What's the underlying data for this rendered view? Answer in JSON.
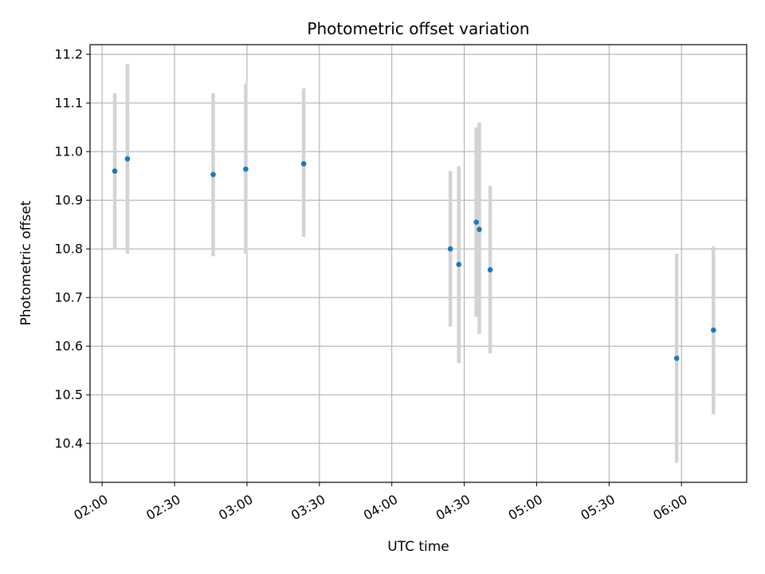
{
  "chart_data": {
    "type": "scatter",
    "title": "Photometric offset variation",
    "xlabel": "UTC time",
    "ylabel": "Photometric offset",
    "x_unit": "UTC time",
    "xlim": [
      "01:55",
      "06:27"
    ],
    "ylim": [
      10.32,
      11.22
    ],
    "grid": true,
    "x_ticks": [
      "02:00",
      "02:30",
      "03:00",
      "03:30",
      "04:00",
      "04:30",
      "05:00",
      "05:30",
      "06:00"
    ],
    "y_ticks": [
      "10.4",
      "10.5",
      "10.6",
      "10.7",
      "10.8",
      "10.9",
      "11.0",
      "11.1",
      "11.2"
    ],
    "marker_color": "#1f77b4",
    "errorbar_color": "#d3d3d3",
    "points": [
      {
        "time": "02:05:15",
        "value": 10.96,
        "err_low": 10.8,
        "err_high": 11.12
      },
      {
        "time": "02:10:30",
        "value": 10.985,
        "err_low": 10.79,
        "err_high": 11.18
      },
      {
        "time": "02:46:00",
        "value": 10.953,
        "err_low": 10.785,
        "err_high": 11.12
      },
      {
        "time": "02:59:30",
        "value": 10.964,
        "err_low": 10.79,
        "err_high": 11.14
      },
      {
        "time": "03:23:30",
        "value": 10.975,
        "err_low": 10.825,
        "err_high": 11.13
      },
      {
        "time": "04:24:15",
        "value": 10.8,
        "err_low": 10.64,
        "err_high": 10.96
      },
      {
        "time": "04:27:45",
        "value": 10.768,
        "err_low": 10.565,
        "err_high": 10.97
      },
      {
        "time": "04:35:00",
        "value": 10.855,
        "err_low": 10.66,
        "err_high": 11.05
      },
      {
        "time": "04:36:15",
        "value": 10.84,
        "err_low": 10.625,
        "err_high": 11.06
      },
      {
        "time": "04:40:45",
        "value": 10.757,
        "err_low": 10.585,
        "err_high": 10.93
      },
      {
        "time": "05:58:00",
        "value": 10.575,
        "err_low": 10.36,
        "err_high": 10.79
      },
      {
        "time": "06:13:15",
        "value": 10.633,
        "err_low": 10.46,
        "err_high": 10.805
      }
    ]
  }
}
